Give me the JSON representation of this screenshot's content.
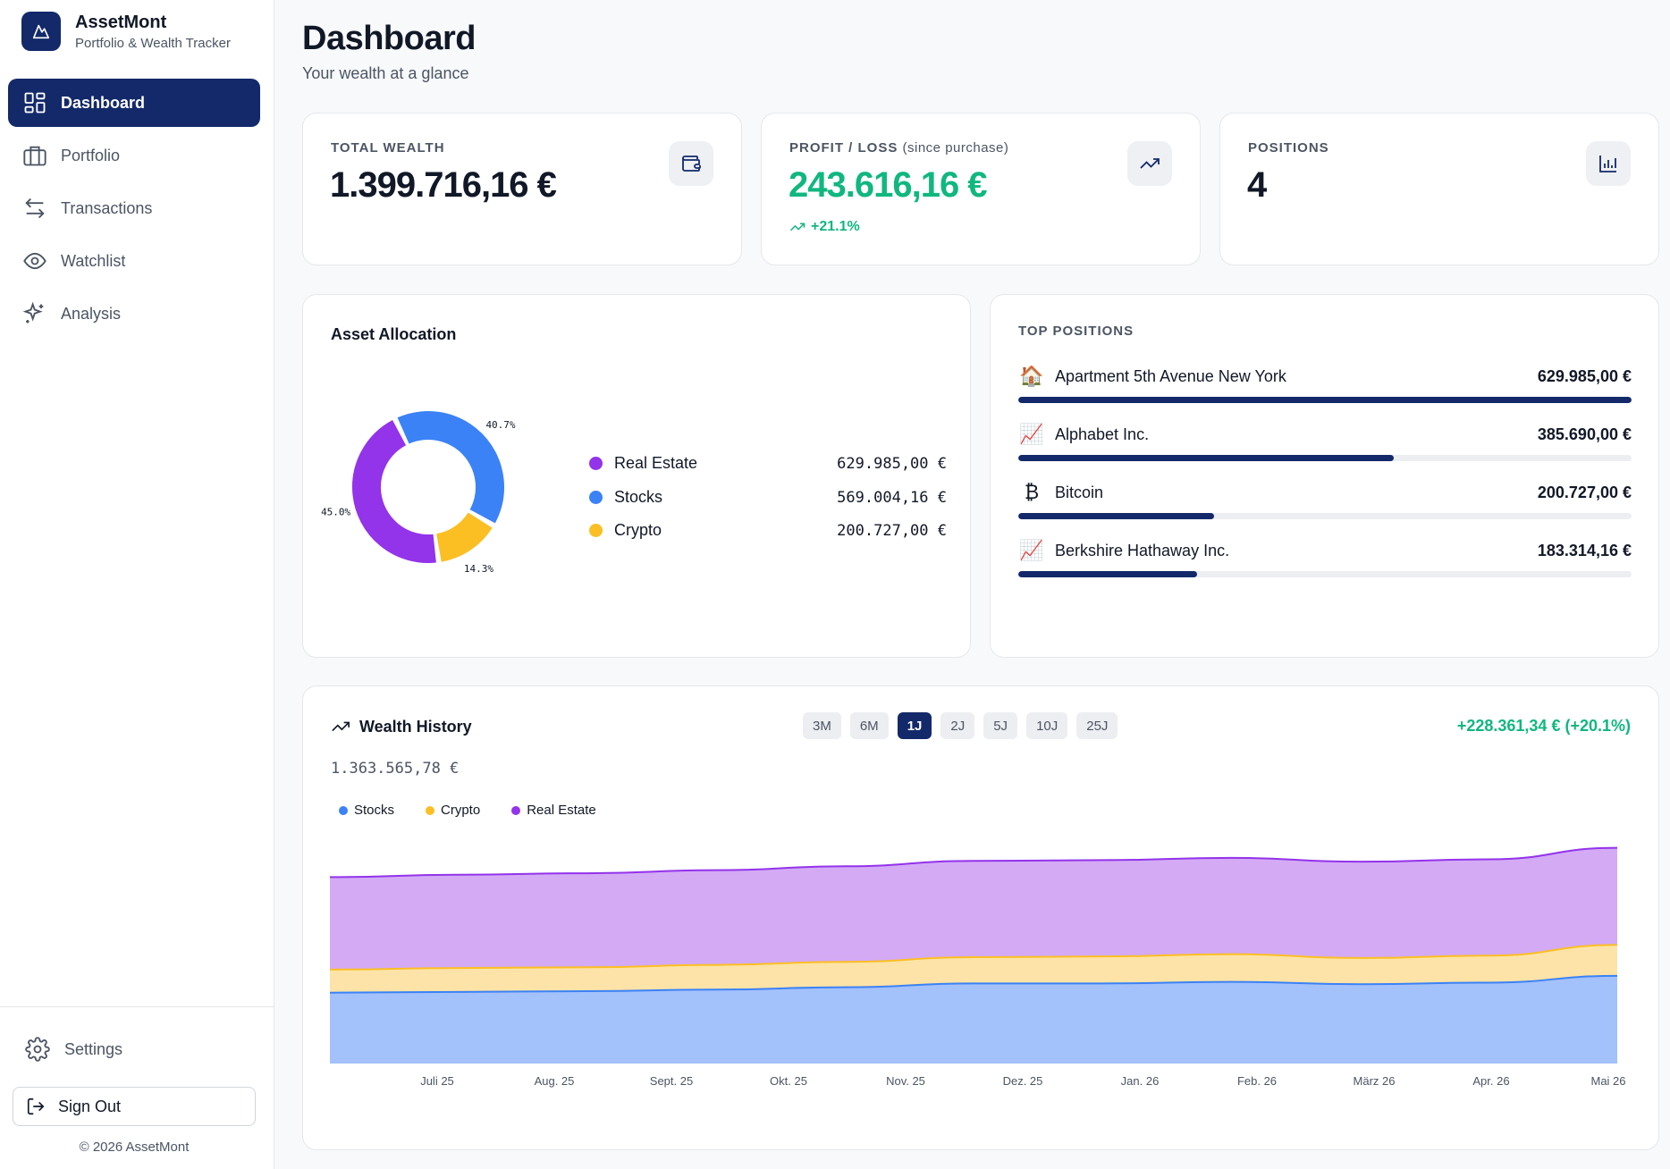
{
  "brand": {
    "name": "AssetMont",
    "subtitle": "Portfolio & Wealth Tracker"
  },
  "nav": {
    "items": [
      {
        "label": "Dashboard",
        "icon": "grid-icon",
        "active": true
      },
      {
        "label": "Portfolio",
        "icon": "briefcase-icon"
      },
      {
        "label": "Transactions",
        "icon": "arrows-icon"
      },
      {
        "label": "Watchlist",
        "icon": "eye-icon"
      },
      {
        "label": "Analysis",
        "icon": "sparkle-icon"
      }
    ],
    "settings": "Settings",
    "signout": "Sign Out",
    "copyright": "© 2026 AssetMont"
  },
  "header": {
    "title": "Dashboard",
    "subtitle": "Your wealth at a glance"
  },
  "stats": {
    "total": {
      "label": "TOTAL WEALTH",
      "value": "1.399.716,16 €"
    },
    "profit": {
      "label": "PROFIT / LOSS",
      "label_note": "(since purchase)",
      "value": "243.616,16 €",
      "change": "+21.1%"
    },
    "positions": {
      "label": "POSITIONS",
      "value": "4"
    }
  },
  "allocation": {
    "title": "Asset Allocation",
    "items": [
      {
        "name": "Real Estate",
        "value": "629.985,00 €",
        "pct_label": "45.0%",
        "color": "#9333ea"
      },
      {
        "name": "Stocks",
        "value": "569.004,16 €",
        "pct_label": "40.7%",
        "color": "#3b82f6"
      },
      {
        "name": "Crypto",
        "value": "200.727,00 €",
        "pct_label": "14.3%",
        "color": "#fbbf24"
      }
    ]
  },
  "chart_data": [
    {
      "type": "pie",
      "categories": [
        "Real Estate",
        "Stocks",
        "Crypto"
      ],
      "values": [
        629985.0,
        569004.16,
        200727.0
      ],
      "percent_labels": [
        "45.0%",
        "40.7%",
        "14.3%"
      ]
    },
    {
      "type": "area",
      "stacked": true,
      "categories": [
        "Juli 25",
        "Aug. 25",
        "Sept. 25",
        "Okt. 25",
        "Nov. 25",
        "Dez. 25",
        "Jan. 26",
        "Feb. 26",
        "März 26",
        "Apr. 26",
        "Mai 26"
      ],
      "series": [
        {
          "name": "Stocks",
          "color": "#3b82f6",
          "values": [
            460,
            465,
            470,
            480,
            495,
            520,
            520,
            530,
            515,
            525,
            569
          ]
        },
        {
          "name": "Crypto",
          "color": "#fbbf24",
          "values": [
            150,
            155,
            155,
            160,
            165,
            170,
            175,
            180,
            170,
            175,
            201
          ]
        },
        {
          "name": "Real Estate",
          "color": "#9333ea",
          "values": [
            600,
            605,
            610,
            615,
            620,
            625,
            625,
            625,
            625,
            625,
            630
          ]
        }
      ],
      "legend": "top-left",
      "grid": false
    }
  ],
  "top_positions": {
    "title": "TOP POSITIONS",
    "items": [
      {
        "icon": "🏠",
        "name": "Apartment 5th Avenue New York",
        "value": "629.985,00 €",
        "share": 1.0
      },
      {
        "icon": "📈",
        "name": "Alphabet Inc.",
        "value": "385.690,00 €",
        "share": 0.612
      },
      {
        "icon": "₿",
        "name": "Bitcoin",
        "value": "200.727,00 €",
        "share": 0.319
      },
      {
        "icon": "📈",
        "name": "Berkshire Hathaway Inc.",
        "value": "183.314,16 €",
        "share": 0.291
      }
    ]
  },
  "history": {
    "title": "Wealth History",
    "ranges": [
      "3M",
      "6M",
      "1J",
      "2J",
      "5J",
      "10J",
      "25J"
    ],
    "active_range": "1J",
    "change": "+228.361,34 € (+20.1%)",
    "value": "1.363.565,78 €"
  }
}
